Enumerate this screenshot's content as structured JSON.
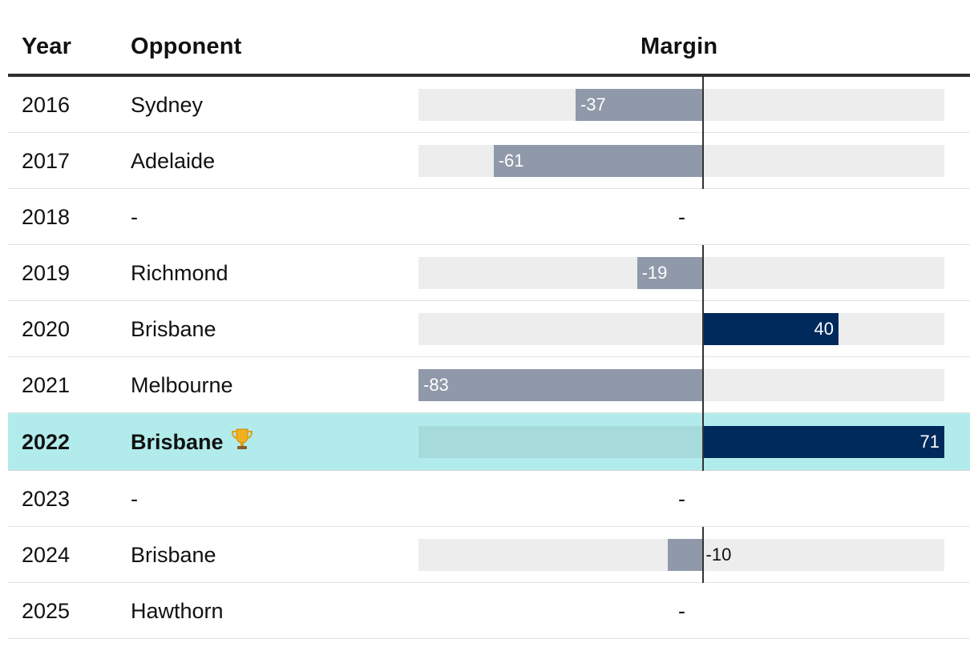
{
  "table": {
    "headers": {
      "year": "Year",
      "opponent": "Opponent",
      "margin": "Margin"
    },
    "no_game_text": "-"
  },
  "chart_data": {
    "type": "bar",
    "orientation": "horizontal-diverging",
    "xlim": [
      -83,
      71
    ],
    "colors": {
      "negative": "#8f99a9",
      "positive": "#00295c",
      "track": "#ededed",
      "highlight_row": "#b2ebec"
    },
    "rows": [
      {
        "year": "2016",
        "opponent": "Sydney",
        "margin": -37,
        "highlight": false
      },
      {
        "year": "2017",
        "opponent": "Adelaide",
        "margin": -61,
        "highlight": false
      },
      {
        "year": "2018",
        "opponent": "-",
        "margin": null,
        "highlight": false
      },
      {
        "year": "2019",
        "opponent": "Richmond",
        "margin": -19,
        "highlight": false
      },
      {
        "year": "2020",
        "opponent": "Brisbane",
        "margin": 40,
        "highlight": false
      },
      {
        "year": "2021",
        "opponent": "Melbourne",
        "margin": -83,
        "highlight": false
      },
      {
        "year": "2022",
        "opponent": "Brisbane",
        "margin": 71,
        "highlight": true,
        "icon": "trophy-icon"
      },
      {
        "year": "2023",
        "opponent": "-",
        "margin": null,
        "highlight": false
      },
      {
        "year": "2024",
        "opponent": "Brisbane",
        "margin": -10,
        "highlight": false
      },
      {
        "year": "2025",
        "opponent": "Hawthorn",
        "margin": null,
        "highlight": false
      }
    ]
  }
}
